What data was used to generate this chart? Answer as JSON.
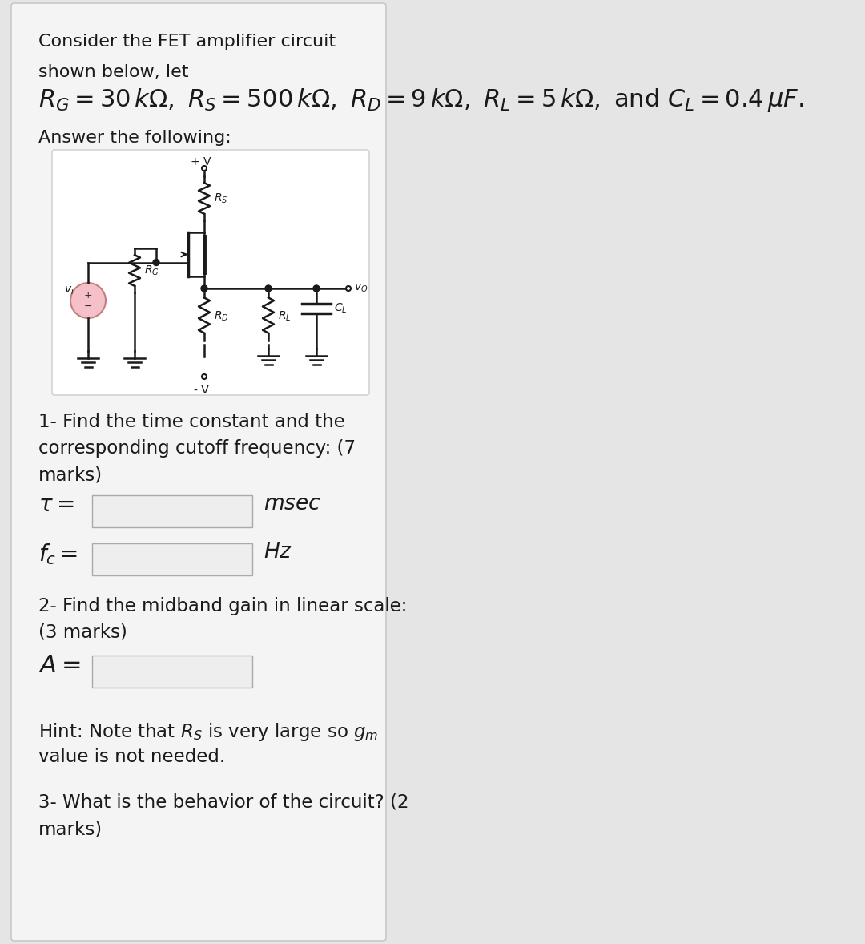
{
  "bg_color": "#e5e5e5",
  "card_bg": "#f4f4f4",
  "card_border": "#c8c8c8",
  "circuit_bg": "#ffffff",
  "circuit_border": "#cccccc",
  "input_box_bg": "#eeeeee",
  "input_box_border": "#aaaaaa",
  "pink_fill": "#f5c0c8",
  "pink_border": "#c08080",
  "wire_color": "#1a1a1a",
  "text_color": "#1a1a1a",
  "title1": "Consider the FET amplifier circuit",
  "title2": "shown below, let",
  "eq_part1": "$R_G = 30\\,k\\Omega,$",
  "eq_part2": "$R_S = 500\\,k\\Omega,$",
  "eq_part3": "$R_D = 9\\,k\\Omega,$",
  "eq_part4": "$R_L = 5\\,k\\Omega,$",
  "eq_part5": "and $C_L = 0.4\\,\\mu F.$",
  "answer": "Answer the following:",
  "q1a": "1- Find the time constant and the",
  "q1b": "corresponding cutoff frequency: (7",
  "q1c": "marks)",
  "q2a": "2- Find the midband gain in linear scale:",
  "q2b": "(3 marks)",
  "hint1": "Hint: Note that $R_S$ is very large so $g_m$",
  "hint2": "value is not needed.",
  "q3a": "3- What is the behavior of the circuit? (2",
  "q3b": "marks)"
}
